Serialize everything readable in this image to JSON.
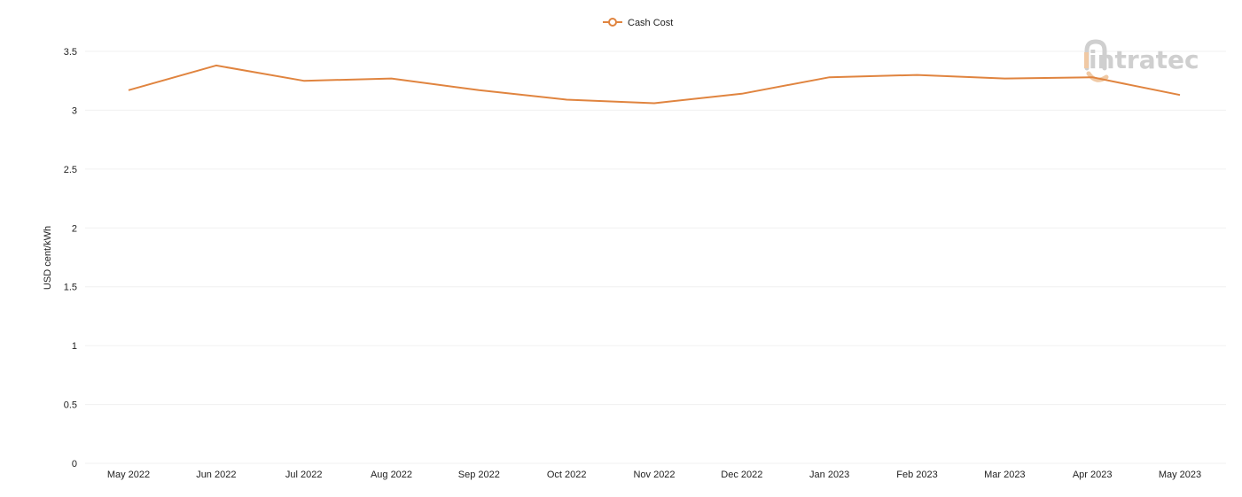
{
  "chart_data": {
    "type": "line",
    "title": "",
    "xlabel": "",
    "ylabel": "USD cent/kWh",
    "categories": [
      "May 2022",
      "Jun 2022",
      "Jul 2022",
      "Aug 2022",
      "Sep 2022",
      "Oct 2022",
      "Nov 2022",
      "Dec 2022",
      "Jan 2023",
      "Feb 2023",
      "Mar 2023",
      "Apr 2023",
      "May 2023"
    ],
    "series": [
      {
        "name": "Cash Cost",
        "color": "#e0843f",
        "values": [
          3.17,
          3.38,
          3.25,
          3.27,
          3.17,
          3.09,
          3.06,
          3.14,
          3.28,
          3.3,
          3.27,
          3.28,
          3.13
        ]
      }
    ],
    "ylim": [
      0,
      3.5
    ],
    "yticks": [
      "0",
      "0.5",
      "1",
      "1.5",
      "2",
      "2.5",
      "3",
      "3.5"
    ],
    "grid": true,
    "legend_position": "top-center"
  },
  "watermark": {
    "text": "intratec",
    "color": "#cfcfcf",
    "accent": "#f0c9a4"
  }
}
